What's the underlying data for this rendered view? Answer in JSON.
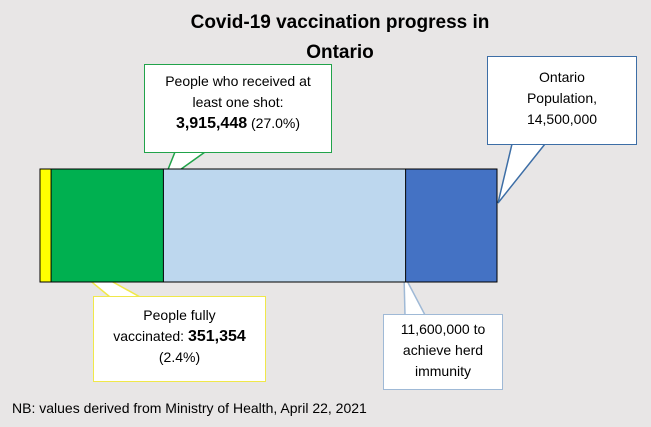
{
  "title": {
    "line1": "Covid-19 vaccination progress in",
    "line2": "Ontario"
  },
  "callouts": {
    "one_shot": {
      "line1": "People who received at",
      "line2": "least one shot:",
      "value": "3,915,448",
      "pct": "(27.0%)"
    },
    "population": {
      "line1": "Ontario",
      "line2": "Population,",
      "value": "14,500,000"
    },
    "fully": {
      "line1": "People fully",
      "line2_prefix": "vaccinated:",
      "value": "351,354",
      "pct": "(2.4%)"
    },
    "herd": {
      "line1": "11,600,000 to",
      "line2": "achieve herd",
      "line3": "immunity"
    }
  },
  "note": "NB: values derived from Ministry of Health, April 22, 2021",
  "colors": {
    "fully": "#ffff00",
    "one_shot": "#00b050",
    "herd": "#bdd7ee",
    "population": "#4472c4"
  },
  "chart_data": {
    "type": "bar",
    "orientation": "horizontal-stacked",
    "title": "Covid-19 vaccination progress in Ontario",
    "total": 14500000,
    "segments": [
      {
        "name": "People fully vaccinated",
        "value": 351354,
        "color": "#ffff00"
      },
      {
        "name": "People who received at least one shot",
        "value": 3915448,
        "color": "#00b050"
      },
      {
        "name": "11,600,000 to achieve herd immunity",
        "value": 11600000,
        "color": "#bdd7ee"
      },
      {
        "name": "Ontario Population",
        "value": 14500000,
        "color": "#4472c4"
      }
    ]
  }
}
